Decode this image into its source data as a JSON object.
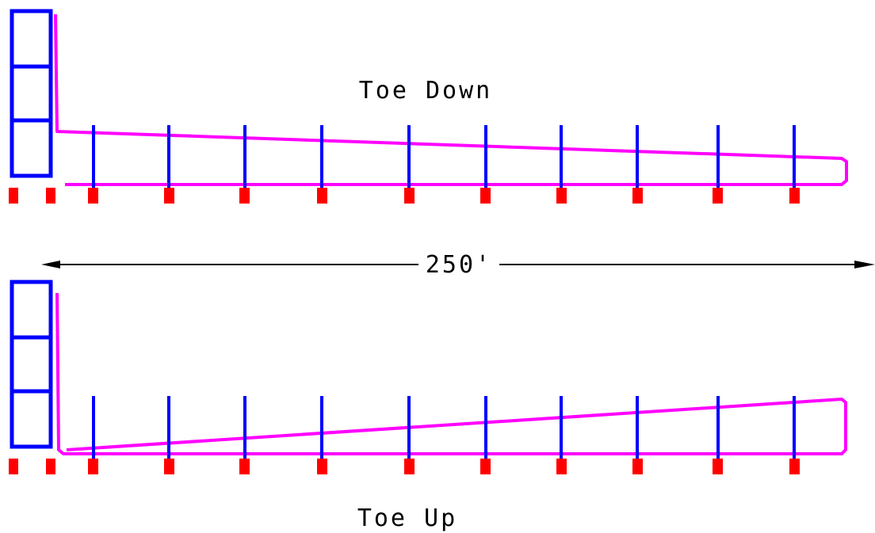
{
  "labels": {
    "toe_down": "Toe Down",
    "toe_up": "Toe Up",
    "dimension": "250'"
  },
  "colors": {
    "tower": "#0000ff",
    "post": "#0000ff",
    "cable": "#ff00ff",
    "footing": "#ff0000",
    "dimension": "#000000",
    "background": "#ffffff"
  },
  "diagrams": [
    {
      "id": "toe-down",
      "label_key": "toe_down",
      "post_count": 10,
      "slope": "down"
    },
    {
      "id": "toe-up",
      "label_key": "toe_up",
      "post_count": 10,
      "slope": "up"
    }
  ]
}
